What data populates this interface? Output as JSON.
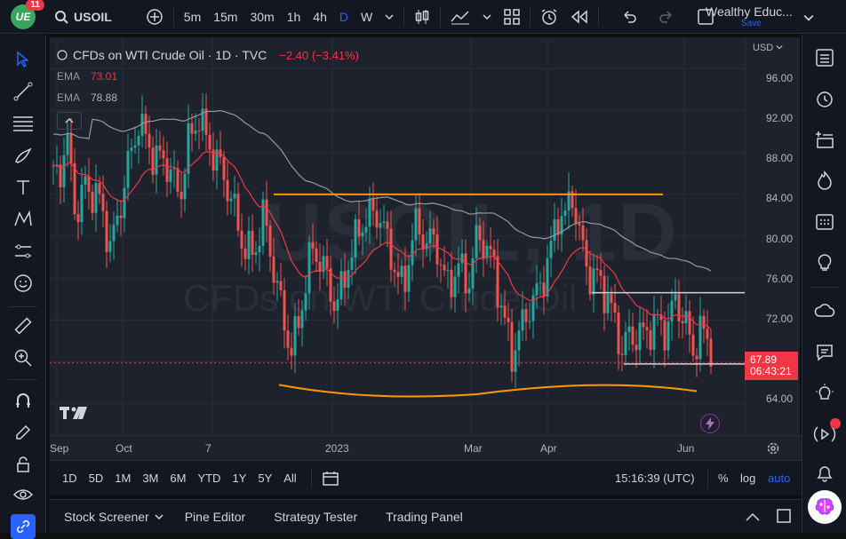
{
  "header": {
    "notification_count": "11",
    "symbol": "USOIL",
    "intervals": [
      "5m",
      "15m",
      "30m",
      "1h",
      "4h",
      "D",
      "W"
    ],
    "active_interval": "D",
    "account_name": "Wealthy Educ...",
    "save_label": "Save"
  },
  "legend": {
    "title": "CFDs on WTI Crude Oil · 1D · TVC",
    "change": "−2.40 (−3.41%)",
    "ema1_label": "EMA",
    "ema1_value": "73.01",
    "ema2_label": "EMA",
    "ema2_value": "78.88"
  },
  "watermark": {
    "line1": "USOIL, 1D",
    "line2": "CFDs on WTI Crude Oil"
  },
  "price_scale": {
    "currency": "USD",
    "ticks": [
      "96.00",
      "92.00",
      "88.00",
      "84.00",
      "80.00",
      "76.00",
      "72.00",
      "68.00",
      "64.00"
    ],
    "current_price": "67.89",
    "countdown": "06:43:21"
  },
  "time_scale": {
    "labels": [
      "Sep",
      "Oct",
      "7",
      "2023",
      "Mar",
      "Apr",
      "Jun"
    ]
  },
  "bottom_toolbar": {
    "ranges": [
      "1D",
      "5D",
      "1M",
      "3M",
      "6M",
      "YTD",
      "1Y",
      "5Y",
      "All"
    ],
    "clock": "15:16:39 (UTC)",
    "percent": "%",
    "log": "log",
    "auto": "auto"
  },
  "bottom_panel": {
    "tabs": [
      "Stock Screener",
      "Pine Editor",
      "Strategy Tester",
      "Trading Panel"
    ]
  },
  "chart_data": {
    "type": "candlestick",
    "symbol": "USOIL",
    "interval": "1D",
    "ylim": [
      61,
      99
    ],
    "series": [
      {
        "name": "EMA",
        "value_last": 73.01,
        "color": "#f23645"
      },
      {
        "name": "EMA",
        "value_last": 78.88,
        "color": "#9598a1"
      }
    ],
    "horizontal_lines": [
      74.6,
      67.8
    ],
    "colors": {
      "up": "#26a69a",
      "down": "#ef5350",
      "annotation": "#ff9800"
    }
  }
}
